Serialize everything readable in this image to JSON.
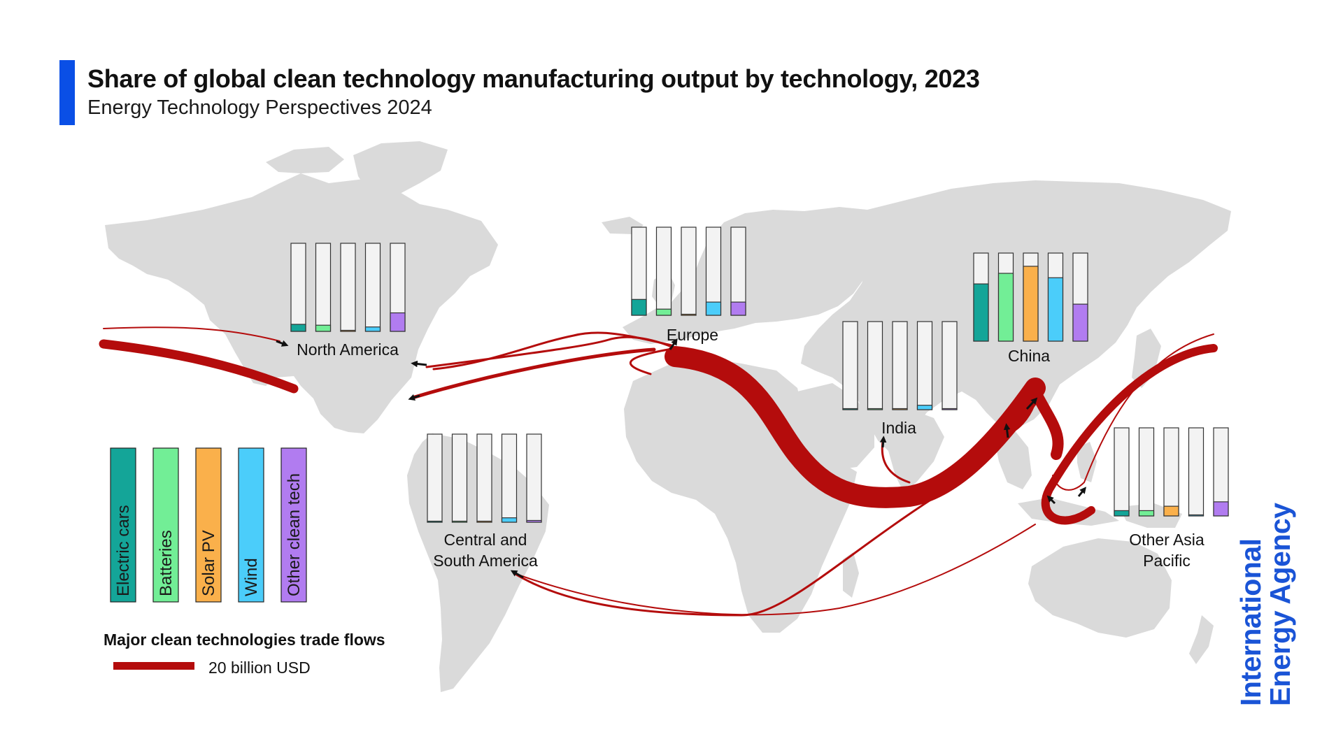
{
  "header": {
    "title": "Share of global clean technology manufacturing output by technology, 2023",
    "subtitle": "Energy Technology Perspectives 2024"
  },
  "brand": {
    "line1": "International",
    "line2": "Energy Agency",
    "color": "#1a54d6",
    "accent_color": "#0a4fe6"
  },
  "flows": {
    "legend_title": "Major clean technologies trade flows",
    "legend_scale": "20 billion USD",
    "color": "#b40c0c"
  },
  "chart_data": {
    "type": "bar",
    "title": "Share of global clean technology manufacturing output by technology, 2023",
    "subtitle": "Energy Technology Perspectives 2024",
    "categories": [
      "Electric cars",
      "Batteries",
      "Solar PV",
      "Wind",
      "Other clean tech"
    ],
    "category_colors": [
      "#14a598",
      "#72ee96",
      "#fab04b",
      "#4bcdfa",
      "#b17cf0"
    ],
    "unit": "share of global output (%)",
    "ylim": [
      0,
      100
    ],
    "series": [
      {
        "name": "North America",
        "values": [
          8,
          7,
          1,
          5,
          21
        ]
      },
      {
        "name": "Europe",
        "values": [
          18,
          7,
          1,
          15,
          15
        ]
      },
      {
        "name": "China",
        "values": [
          65,
          77,
          85,
          72,
          42
        ]
      },
      {
        "name": "India",
        "values": [
          1,
          1,
          1,
          5,
          1
        ]
      },
      {
        "name": "Central and South America",
        "values": [
          1,
          1,
          1,
          5,
          2
        ]
      },
      {
        "name": "Other Asia Pacific",
        "values": [
          6,
          6,
          11,
          1,
          16
        ]
      }
    ]
  }
}
